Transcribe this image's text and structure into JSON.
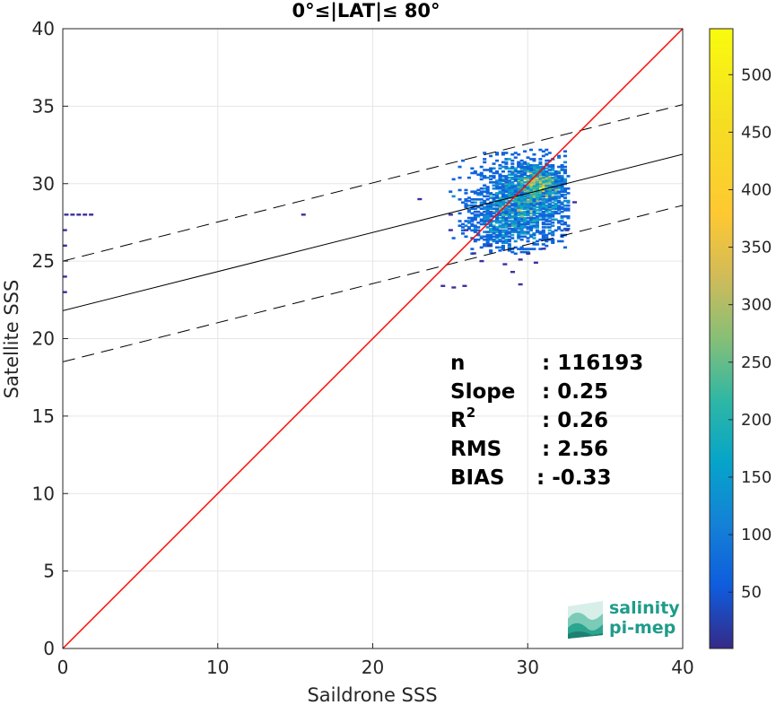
{
  "chart_data": {
    "type": "scatter",
    "title": "0°≤|LAT|≤ 80°",
    "xlabel": "Saildrone SSS",
    "ylabel": "Satellite SSS",
    "xlim": [
      0,
      40
    ],
    "ylim": [
      0,
      40
    ],
    "xticks": [
      0,
      10,
      20,
      30,
      40
    ],
    "yticks": [
      0,
      5,
      10,
      15,
      20,
      25,
      30,
      35,
      40
    ],
    "grid": true,
    "one_to_one_line": {
      "x": [
        0,
        40
      ],
      "y": [
        0,
        40
      ],
      "color": "#ff0000"
    },
    "fit_line": {
      "x": [
        0,
        40
      ],
      "y": [
        21.8,
        31.9
      ],
      "color": "#000000"
    },
    "fit_upper_band": {
      "x": [
        0,
        40
      ],
      "y": [
        25.0,
        35.1
      ],
      "color": "#000000",
      "style": "dashed"
    },
    "fit_lower_band": {
      "x": [
        0,
        40
      ],
      "y": [
        18.5,
        28.6
      ],
      "color": "#000000",
      "style": "dashed"
    },
    "density_clusters": [
      {
        "cx": 29.8,
        "cy": 28.9,
        "sx": 1.6,
        "sy": 1.4,
        "n": 1700
      },
      {
        "cx": 30.8,
        "cy": 30.1,
        "sx": 0.7,
        "sy": 0.6,
        "n": 500
      },
      {
        "cx": 28.0,
        "cy": 27.5,
        "sx": 1.0,
        "sy": 1.0,
        "n": 300
      }
    ],
    "stray_points": [
      {
        "x": 0.2,
        "y": 28.0
      },
      {
        "x": 0.6,
        "y": 28.0
      },
      {
        "x": 1.0,
        "y": 28.0
      },
      {
        "x": 1.4,
        "y": 28.0
      },
      {
        "x": 1.8,
        "y": 28.0
      },
      {
        "x": 0.1,
        "y": 27.0
      },
      {
        "x": 0.1,
        "y": 26.0
      },
      {
        "x": 0.1,
        "y": 24.0
      },
      {
        "x": 0.1,
        "y": 23.0
      },
      {
        "x": 15.5,
        "y": 28.0
      },
      {
        "x": 23.0,
        "y": 29.0
      },
      {
        "x": 25.0,
        "y": 28.0
      },
      {
        "x": 24.5,
        "y": 23.4
      },
      {
        "x": 25.2,
        "y": 23.3
      },
      {
        "x": 25.9,
        "y": 23.4
      },
      {
        "x": 27.0,
        "y": 25.0
      },
      {
        "x": 28.5,
        "y": 24.8
      },
      {
        "x": 29.5,
        "y": 25.1
      },
      {
        "x": 30.5,
        "y": 24.9
      },
      {
        "x": 29.0,
        "y": 24.3
      },
      {
        "x": 27.5,
        "y": 26.0
      },
      {
        "x": 26.5,
        "y": 25.5
      },
      {
        "x": 26.0,
        "y": 27.0
      },
      {
        "x": 25.0,
        "y": 27.0
      },
      {
        "x": 32.5,
        "y": 27.0
      },
      {
        "x": 33.0,
        "y": 28.8
      },
      {
        "x": 29.5,
        "y": 23.5
      },
      {
        "x": 31.0,
        "y": 25.8
      },
      {
        "x": 30.0,
        "y": 25.5
      }
    ],
    "colorbar": {
      "ticks": [
        50,
        100,
        150,
        200,
        250,
        300,
        350,
        400,
        450,
        500
      ],
      "range": [
        1,
        540
      ]
    },
    "stats": [
      {
        "label": "n",
        "value": ": 116193"
      },
      {
        "label": "Slope",
        "value": ": 0.25"
      },
      {
        "label": "R",
        "sup": "2",
        "value": ": 0.26"
      },
      {
        "label": "RMS",
        "value": ": 2.56"
      },
      {
        "label": "BIAS",
        "value": ": -0.33"
      }
    ]
  },
  "logo": {
    "line1": "salinity",
    "line2": "pi-mep"
  }
}
